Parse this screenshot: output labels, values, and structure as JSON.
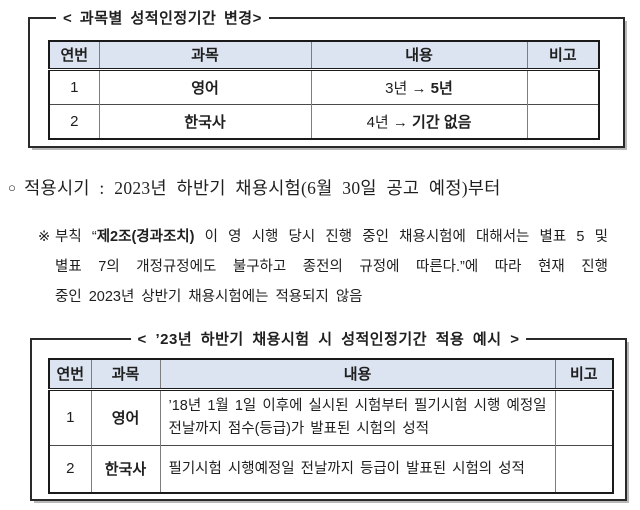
{
  "colors": {
    "table_header_bg": "#dce4f1",
    "outer_border": "#2a2a2a",
    "inner_line": "#7d7d7d",
    "text": "#1f1f1f",
    "box_shadow": "#b8b8b8"
  },
  "box1": {
    "legend": "< 과목별 성적인정기간 변경>",
    "table": {
      "headers": [
        "연번",
        "과목",
        "내용",
        "비고"
      ],
      "rows": [
        {
          "no": "1",
          "subject": "영어",
          "content_plain": "3년 → ",
          "content_bold": "5년",
          "note": ""
        },
        {
          "no": "2",
          "subject": "한국사",
          "content_plain": "4년 → ",
          "content_bold": "기간 없음",
          "note": ""
        }
      ]
    }
  },
  "apply_line": {
    "bullet": "○",
    "text": "적용시기 : 2023년 하반기 채용시험(6월 30일 공고 예정)부터"
  },
  "note": {
    "marker": "※",
    "line1_pre": "부칙 “",
    "line1_bold": "제2조(경과조치)",
    "line1_post": " 이 영 시행 당시 진행 중인 채용시험에 대해서는 별표 5 및",
    "line2": "별표 7의 개정규정에도 불구하고 종전의 규정에 따른다.”에 따라 현재 진행",
    "line3": "중인 2023년 상반기 채용시험에는 적용되지 않음"
  },
  "box2": {
    "legend": "< ’23년 하반기 채용시험 시 성적인정기간 적용 예시 >",
    "table": {
      "headers": [
        "연번",
        "과목",
        "내용",
        "비고"
      ],
      "rows": [
        {
          "no": "1",
          "subject": "영어",
          "content": "’18년 1월 1일 이후에 실시된 시험부터 필기시험 시행 예정일 전날까지 점수(등급)가 발표된 시험의 성적",
          "note": ""
        },
        {
          "no": "2",
          "subject": "한국사",
          "content": "필기시험 시행예정일 전날까지 등급이 발표된 시험의 성적",
          "note": ""
        }
      ]
    }
  }
}
